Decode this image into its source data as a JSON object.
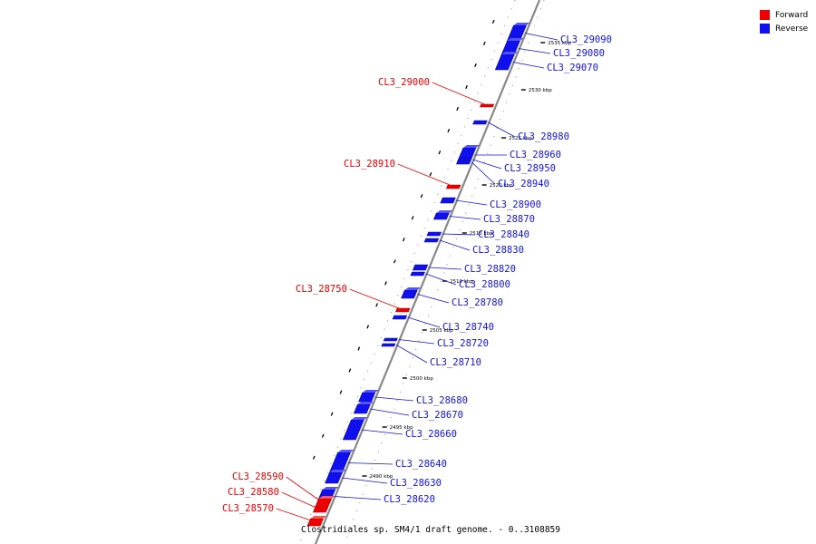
{
  "legend": {
    "forward_label": "Forward",
    "reverse_label": "Reverse",
    "forward_color": "#ee0000",
    "reverse_color": "#1010ee"
  },
  "title": "Clostridiales sp. SM4/1 draft genome. - 0..3108859",
  "backbone_color": "#888888",
  "ticks": [
    "2535 kbp",
    "2530 kbp",
    "2525 kbp",
    "2520 kbp",
    "2515 kbp",
    "2510 kbp",
    "2505 kbp",
    "2500 kbp",
    "2495 kbp",
    "2490 kbp"
  ],
  "genes": [
    {
      "name": "CL3_29090",
      "strand": "reverse"
    },
    {
      "name": "CL3_29080",
      "strand": "reverse"
    },
    {
      "name": "CL3_29070",
      "strand": "reverse"
    },
    {
      "name": "CL3_29000",
      "strand": "forward"
    },
    {
      "name": "CL3_28980",
      "strand": "reverse"
    },
    {
      "name": "CL3_28960",
      "strand": "reverse"
    },
    {
      "name": "CL3_28950",
      "strand": "reverse"
    },
    {
      "name": "CL3_28940",
      "strand": "reverse"
    },
    {
      "name": "CL3_28910",
      "strand": "forward"
    },
    {
      "name": "CL3_28900",
      "strand": "reverse"
    },
    {
      "name": "CL3_28870",
      "strand": "reverse"
    },
    {
      "name": "CL3_28840",
      "strand": "reverse"
    },
    {
      "name": "CL3_28830",
      "strand": "reverse"
    },
    {
      "name": "CL3_28820",
      "strand": "reverse"
    },
    {
      "name": "CL3_28800",
      "strand": "reverse"
    },
    {
      "name": "CL3_28780",
      "strand": "reverse"
    },
    {
      "name": "CL3_28750",
      "strand": "forward"
    },
    {
      "name": "CL3_28740",
      "strand": "reverse"
    },
    {
      "name": "CL3_28720",
      "strand": "reverse"
    },
    {
      "name": "CL3_28710",
      "strand": "reverse"
    },
    {
      "name": "CL3_28680",
      "strand": "reverse"
    },
    {
      "name": "CL3_28670",
      "strand": "reverse"
    },
    {
      "name": "CL3_28660",
      "strand": "reverse"
    },
    {
      "name": "CL3_28640",
      "strand": "reverse"
    },
    {
      "name": "CL3_28630",
      "strand": "reverse"
    },
    {
      "name": "CL3_28620",
      "strand": "reverse"
    },
    {
      "name": "CL3_28590",
      "strand": "forward"
    },
    {
      "name": "CL3_28580",
      "strand": "forward"
    },
    {
      "name": "CL3_28570",
      "strand": "forward"
    }
  ]
}
